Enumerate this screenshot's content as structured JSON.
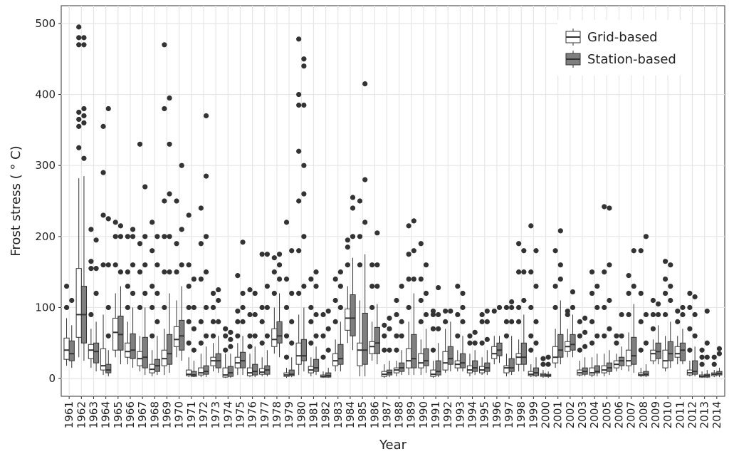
{
  "chart_data": {
    "type": "boxplot",
    "x_label": "Year",
    "y_label": "Frost stress ( ° C)",
    "categories": [
      "1961",
      "1962",
      "1963",
      "1964",
      "1965",
      "1966",
      "1967",
      "1968",
      "1969",
      "1970",
      "1971",
      "1972",
      "1973",
      "1974",
      "1975",
      "1976",
      "1977",
      "1978",
      "1979",
      "1980",
      "1981",
      "1982",
      "1983",
      "1984",
      "1985",
      "1986",
      "1987",
      "1988",
      "1989",
      "1990",
      "1991",
      "1992",
      "1993",
      "1994",
      "1995",
      "1996",
      "1997",
      "1998",
      "1999",
      "2000",
      "2001",
      "2002",
      "2003",
      "2004",
      "2005",
      "2006",
      "2007",
      "2008",
      "2009",
      "2010",
      "2011",
      "2012",
      "2013",
      "2014"
    ],
    "ylim": [
      -25,
      525
    ],
    "yticks": [
      0,
      100,
      200,
      300,
      400,
      500
    ],
    "grid": true,
    "legend": "top-right",
    "series": [
      {
        "name": "Grid-based",
        "color": "#ffffff",
        "low": [
          18,
          30,
          15,
          5,
          30,
          20,
          10,
          3,
          5,
          30,
          2,
          2,
          10,
          1,
          5,
          2,
          3,
          35,
          1,
          5,
          3,
          1,
          10,
          50,
          3,
          25,
          1,
          3,
          5,
          5,
          1,
          8,
          10,
          3,
          5,
          20,
          3,
          10,
          2,
          1,
          15,
          30,
          3,
          2,
          3,
          10,
          10,
          2,
          20,
          10,
          20,
          3,
          1,
          2
        ],
        "q1": [
          27,
          58,
          28,
          12,
          40,
          30,
          18,
          8,
          18,
          45,
          4,
          5,
          18,
          2,
          15,
          4,
          6,
          45,
          3,
          20,
          8,
          2,
          18,
          68,
          18,
          35,
          3,
          8,
          15,
          15,
          3,
          12,
          15,
          8,
          8,
          28,
          8,
          20,
          4,
          3,
          22,
          38,
          5,
          5,
          8,
          15,
          18,
          4,
          25,
          15,
          30,
          5,
          2,
          4
        ],
        "median": [
          40,
          90,
          40,
          18,
          65,
          38,
          28,
          13,
          28,
          55,
          6,
          8,
          25,
          5,
          22,
          8,
          9,
          55,
          5,
          32,
          12,
          3,
          25,
          85,
          40,
          45,
          6,
          12,
          25,
          22,
          6,
          22,
          20,
          12,
          12,
          35,
          15,
          30,
          6,
          5,
          30,
          45,
          8,
          8,
          12,
          20,
          25,
          5,
          35,
          25,
          35,
          8,
          3,
          6
        ],
        "q3": [
          57,
          155,
          48,
          42,
          85,
          50,
          38,
          20,
          40,
          73,
          12,
          15,
          30,
          15,
          30,
          15,
          14,
          70,
          8,
          50,
          17,
          5,
          35,
          98,
          50,
          52,
          10,
          15,
          42,
          35,
          12,
          38,
          25,
          18,
          17,
          45,
          18,
          35,
          10,
          7,
          45,
          52,
          12,
          15,
          18,
          25,
          40,
          8,
          40,
          40,
          45,
          12,
          5,
          8
        ],
        "high": [
          85,
          282,
          70,
          90,
          120,
          80,
          60,
          40,
          70,
          110,
          30,
          35,
          50,
          35,
          50,
          35,
          30,
          100,
          15,
          90,
          30,
          10,
          55,
          130,
          110,
          80,
          20,
          25,
          80,
          55,
          25,
          70,
          40,
          35,
          30,
          60,
          35,
          55,
          20,
          12,
          70,
          70,
          25,
          30,
          35,
          35,
          65,
          15,
          55,
          60,
          60,
          25,
          10,
          12
        ],
        "outliers": [
          [
            100,
            130
          ],
          [
            325,
            355,
            365,
            375,
            470,
            480,
            495
          ],
          [
            90,
            155,
            165,
            210
          ],
          [
            160,
            230,
            290,
            355
          ],
          [
            160,
            200,
            220
          ],
          [
            100,
            130,
            150,
            200
          ],
          [
            100,
            150,
            190,
            330
          ],
          [
            60,
            100,
            130,
            180,
            220
          ],
          [
            100,
            150,
            200,
            250,
            380,
            470
          ],
          [
            150,
            190,
            250
          ],
          [
            50,
            80,
            100,
            130,
            160,
            230
          ],
          [
            50,
            80,
            140,
            190,
            240
          ],
          [
            60,
            80,
            100,
            120
          ],
          [
            40,
            60,
            70
          ],
          [
            60,
            80,
            95,
            145
          ],
          [
            45,
            60,
            90,
            125
          ],
          [
            50,
            80,
            100,
            175
          ],
          [
            120,
            150,
            170
          ],
          [
            30,
            60,
            100,
            140,
            220
          ],
          [
            120,
            180,
            250,
            320,
            385,
            400,
            478
          ],
          [
            50,
            80,
            100,
            140
          ],
          [
            30,
            60,
            90
          ],
          [
            80,
            110,
            140
          ],
          [
            160,
            185,
            195
          ],
          [
            160,
            200,
            250
          ],
          [
            100,
            130,
            160
          ],
          [
            40,
            60,
            75
          ],
          [
            40,
            60,
            90,
            110
          ],
          [
            100,
            140,
            175,
            215
          ],
          [
            80,
            110,
            140,
            190
          ],
          [
            40,
            70,
            90,
            95
          ],
          [
            80,
            95
          ],
          [
            60,
            90,
            130
          ],
          [
            50,
            60
          ],
          [
            50,
            80,
            90
          ],
          [
            95
          ],
          [
            60,
            80,
            100
          ],
          [
            80,
            100,
            150,
            190
          ],
          [
            40,
            60,
            100,
            150,
            215
          ],
          [
            20,
            28
          ],
          [
            100,
            130,
            180
          ],
          [
            90,
            95
          ],
          [
            40,
            60,
            80
          ],
          [
            50,
            80,
            120,
            150
          ],
          [
            60,
            100,
            150,
            242
          ],
          [
            50,
            60
          ],
          [
            90,
            120,
            145
          ],
          [
            40,
            80,
            120,
            180
          ],
          [
            70,
            90,
            110
          ],
          [
            90,
            120,
            140,
            165
          ],
          [
            80,
            95
          ],
          [
            40,
            70,
            100,
            120
          ],
          [
            20,
            30,
            40
          ],
          [
            20,
            30
          ]
        ]
      },
      {
        "name": "Station-based",
        "color": "#7f7f7f",
        "low": [
          15,
          25,
          10,
          3,
          20,
          15,
          5,
          5,
          8,
          25,
          2,
          2,
          8,
          1,
          5,
          2,
          3,
          30,
          2,
          10,
          5,
          1,
          10,
          40,
          3,
          20,
          2,
          5,
          5,
          8,
          2,
          10,
          10,
          5,
          5,
          22,
          5,
          10,
          2,
          1,
          20,
          30,
          3,
          3,
          5,
          12,
          8,
          2,
          20,
          15,
          20,
          3,
          1,
          2
        ],
        "q1": [
          25,
          50,
          22,
          8,
          40,
          28,
          15,
          10,
          20,
          40,
          3,
          6,
          15,
          3,
          15,
          5,
          6,
          50,
          4,
          25,
          10,
          2,
          20,
          60,
          20,
          35,
          5,
          10,
          15,
          18,
          5,
          20,
          15,
          10,
          10,
          32,
          10,
          20,
          4,
          3,
          30,
          40,
          6,
          8,
          10,
          18,
          20,
          4,
          28,
          25,
          25,
          6,
          2,
          5
        ],
        "median": [
          35,
          90,
          38,
          12,
          62,
          40,
          30,
          18,
          35,
          60,
          5,
          10,
          25,
          8,
          25,
          10,
          12,
          60,
          6,
          32,
          15,
          4,
          28,
          85,
          40,
          50,
          8,
          15,
          28,
          25,
          10,
          28,
          22,
          15,
          15,
          40,
          15,
          30,
          8,
          4,
          40,
          48,
          10,
          10,
          15,
          25,
          32,
          6,
          38,
          35,
          40,
          10,
          4,
          7
        ],
        "q3": [
          53,
          130,
          50,
          20,
          88,
          63,
          58,
          27,
          62,
          82,
          10,
          18,
          35,
          17,
          37,
          20,
          18,
          80,
          12,
          55,
          27,
          8,
          48,
          118,
          92,
          72,
          12,
          22,
          62,
          42,
          25,
          45,
          35,
          25,
          22,
          50,
          28,
          50,
          15,
          6,
          62,
          62,
          15,
          18,
          22,
          30,
          58,
          10,
          50,
          52,
          50,
          25,
          6,
          10
        ],
        "high": [
          75,
          285,
          80,
          40,
          130,
          100,
          100,
          60,
          120,
          130,
          25,
          45,
          60,
          35,
          60,
          45,
          40,
          120,
          30,
          100,
          45,
          15,
          80,
          170,
          175,
          105,
          25,
          40,
          120,
          70,
          50,
          80,
          60,
          40,
          40,
          60,
          60,
          90,
          30,
          10,
          110,
          90,
          30,
          35,
          40,
          45,
          105,
          20,
          75,
          80,
          70,
          45,
          12,
          15
        ],
        "outliers": [
          [
            110
          ],
          [
            310,
            360,
            370,
            380,
            470,
            480
          ],
          [
            120,
            155,
            195
          ],
          [
            60,
            100,
            160,
            225,
            380
          ],
          [
            150,
            200,
            215
          ],
          [
            120,
            160,
            200,
            210
          ],
          [
            120,
            160,
            200,
            270
          ],
          [
            80,
            120,
            160,
            200
          ],
          [
            150,
            200,
            260,
            330,
            395
          ],
          [
            160,
            210,
            300
          ],
          [
            40,
            70,
            100,
            140
          ],
          [
            60,
            100,
            150,
            200,
            285,
            370
          ],
          [
            80,
            110,
            125
          ],
          [
            45,
            55,
            65
          ],
          [
            80,
            100,
            120,
            192
          ],
          [
            60,
            90,
            120
          ],
          [
            60,
            100,
            130,
            175
          ],
          [
            140,
            160,
            175
          ],
          [
            50,
            80,
            120,
            180
          ],
          [
            130,
            200,
            260,
            300,
            385,
            440,
            450
          ],
          [
            60,
            90,
            130,
            150
          ],
          [
            40,
            70,
            95
          ],
          [
            100,
            130,
            150
          ],
          [
            200,
            240,
            255
          ],
          [
            220,
            280,
            415
          ],
          [
            130,
            160,
            205
          ],
          [
            40,
            70,
            85
          ],
          [
            60,
            80,
            130
          ],
          [
            140,
            180,
            222
          ],
          [
            90,
            120,
            160
          ],
          [
            70,
            90,
            128
          ],
          [
            95
          ],
          [
            80,
            100,
            120
          ],
          [
            50,
            65
          ],
          [
            55,
            80,
            95
          ],
          [
            100
          ],
          [
            80,
            100,
            108
          ],
          [
            110,
            150,
            180
          ],
          [
            50,
            80,
            130,
            180
          ],
          [
            20,
            30
          ],
          [
            140,
            160,
            208
          ],
          [
            100,
            122
          ],
          [
            45,
            65,
            85
          ],
          [
            60,
            100,
            130
          ],
          [
            70,
            110,
            160,
            240
          ],
          [
            60,
            90
          ],
          [
            130,
            180
          ],
          [
            50,
            90,
            200
          ],
          [
            90,
            105
          ],
          [
            110,
            130,
            160
          ],
          [
            90,
            100
          ],
          [
            60,
            90,
            115
          ],
          [
            30,
            50,
            95
          ],
          [
            35,
            42
          ]
        ]
      }
    ]
  }
}
